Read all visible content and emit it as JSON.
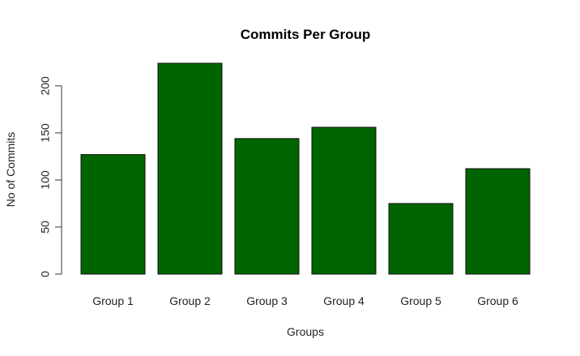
{
  "chart_data": {
    "type": "bar",
    "title": "Commits Per Group",
    "xlabel": "Groups",
    "ylabel": "No of Commits",
    "categories": [
      "Group 1",
      "Group 2",
      "Group 3",
      "Group 4",
      "Group 5",
      "Group 6"
    ],
    "values": [
      127,
      224,
      144,
      156,
      75,
      112
    ],
    "yticks": [
      0,
      50,
      100,
      150,
      200
    ],
    "ylim": [
      0,
      224
    ],
    "bar_color": "#006400",
    "grid": false
  }
}
